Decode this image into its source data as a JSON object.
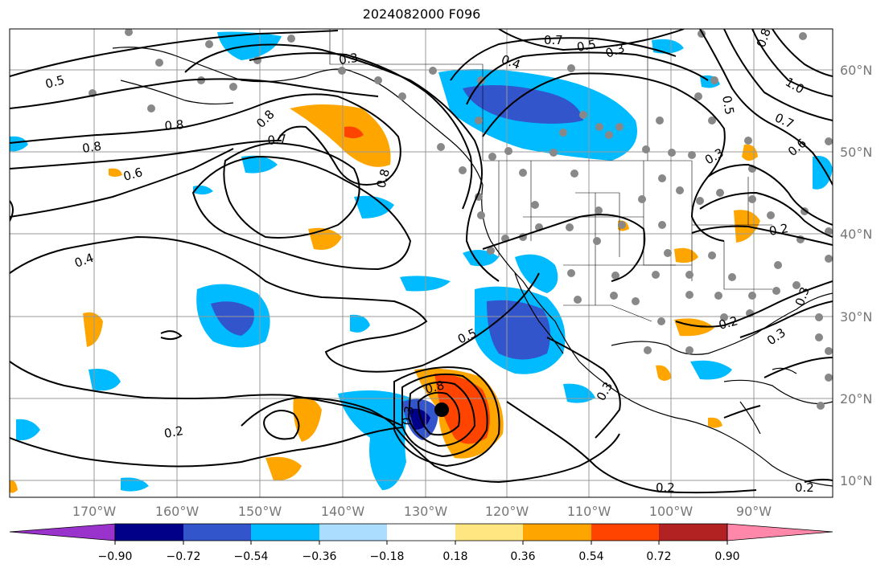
{
  "title": "2024082000 F096",
  "map": {
    "lon_labels": [
      "170°W",
      "160°W",
      "150°W",
      "140°W",
      "130°W",
      "120°W",
      "110°W",
      "100°W",
      "90°W"
    ],
    "lat_labels": [
      "60°N",
      "50°N",
      "40°N",
      "30°N",
      "20°N",
      "10°N"
    ],
    "contour_labels": [
      {
        "text": "0.5"
      },
      {
        "text": "0.3"
      },
      {
        "text": "0.7"
      },
      {
        "text": "0.5"
      },
      {
        "text": "0.3"
      },
      {
        "text": "0.8"
      },
      {
        "text": "1.0"
      },
      {
        "text": "0.7"
      },
      {
        "text": "0.6"
      },
      {
        "text": "0.8"
      },
      {
        "text": "0.8"
      },
      {
        "text": "0.7"
      },
      {
        "text": "0.8"
      },
      {
        "text": "0.6"
      },
      {
        "text": "0.8"
      },
      {
        "text": "0.3"
      },
      {
        "text": "0.2"
      },
      {
        "text": "0.4"
      },
      {
        "text": "0.5"
      },
      {
        "text": "0.3"
      },
      {
        "text": "0.2"
      },
      {
        "text": "0.3"
      },
      {
        "text": "0.3"
      },
      {
        "text": "0.2"
      },
      {
        "text": "0.8"
      },
      {
        "text": "0.2"
      },
      {
        "text": "0.2"
      },
      {
        "text": "0.4"
      },
      {
        "text": "0.5"
      },
      {
        "text": "0.3"
      }
    ],
    "storm_marker": "tropical-cyclone-center"
  },
  "colorbar": {
    "ticks": [
      "−0.90",
      "−0.72",
      "−0.54",
      "−0.36",
      "−0.18",
      "0.18",
      "0.36",
      "0.54",
      "0.72",
      "0.90"
    ],
    "colors": [
      "#9933cc",
      "#000088",
      "#3355cc",
      "#00bbff",
      "#aaddff",
      "#ffffff",
      "#ffe680",
      "#ffa500",
      "#ff4400",
      "#b22222",
      "#ff88aa"
    ]
  }
}
